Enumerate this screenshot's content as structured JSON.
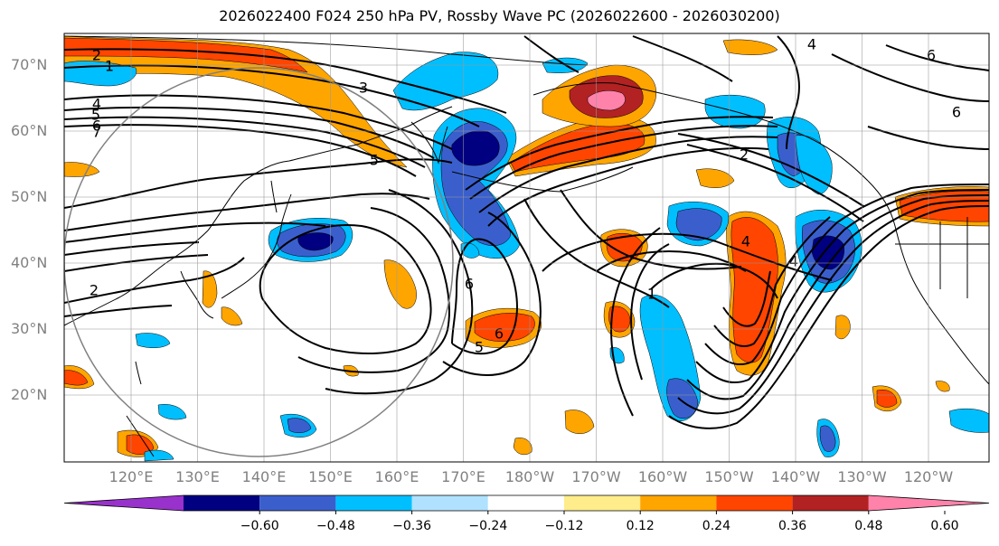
{
  "title": "2026022400 F024 250 hPa PV, Rossby Wave PC (2026022600 - 2026030200)",
  "lat_labels": [
    "70°N",
    "60°N",
    "50°N",
    "40°N",
    "30°N",
    "20°N"
  ],
  "lon_labels": [
    "120°E",
    "130°E",
    "140°E",
    "150°E",
    "160°E",
    "170°E",
    "180°W",
    "170°W",
    "160°W",
    "150°W",
    "140°W",
    "130°W",
    "120°W"
  ],
  "colorbar": {
    "ticks": [
      "−0.60",
      "−0.48",
      "−0.36",
      "−0.24",
      "−0.12",
      "0.12",
      "0.24",
      "0.36",
      "0.48",
      "0.60"
    ],
    "colors": [
      "#9932cc",
      "#000080",
      "#3a5fcd",
      "#00bfff",
      "#b0e2ff",
      "#ffffff",
      "#ffec8b",
      "#ffa500",
      "#ff4500",
      "#b22222",
      "#ff82ab"
    ]
  },
  "contour_labels": [
    "2",
    "1",
    "4",
    "5",
    "6",
    "7",
    "3",
    "5",
    "2",
    "6",
    "6",
    "5",
    "2",
    "1",
    "4",
    "4",
    "6",
    "4",
    "6"
  ],
  "palette": {
    "neg_dark": "#000080",
    "neg_mid": "#3a5fcd",
    "neg_light": "#00bfff",
    "neg_pale": "#b0e2ff",
    "pos_pale": "#ffec8b",
    "pos_mid": "#ffa500",
    "pos_strong": "#ff4500",
    "pos_dark": "#b22222",
    "pos_max": "#ff82ab"
  }
}
